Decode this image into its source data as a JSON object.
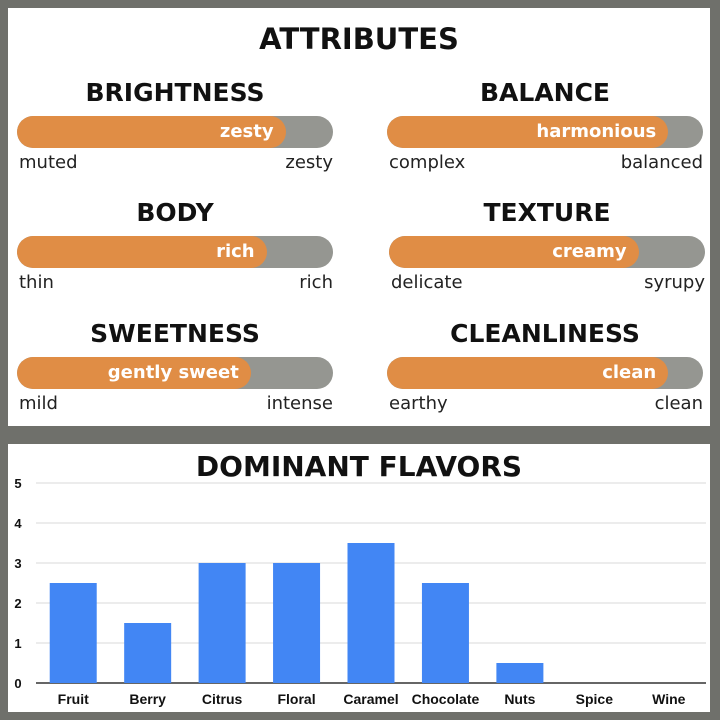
{
  "attributes": {
    "title": "ATTRIBUTES",
    "items": [
      {
        "name": "BRIGHTNESS",
        "value_label": "zesty",
        "low": "muted",
        "high": "zesty",
        "level": 0.85
      },
      {
        "name": "BALANCE",
        "value_label": "harmonious",
        "low": "complex",
        "high": "balanced",
        "level": 0.89
      },
      {
        "name": "BODY",
        "value_label": "rich",
        "low": "thin",
        "high": "rich",
        "level": 0.79
      },
      {
        "name": "TEXTURE",
        "value_label": "creamy",
        "low": "delicate",
        "high": "syrupy",
        "level": 0.79
      },
      {
        "name": "SWEETNESS",
        "value_label": "gently sweet",
        "low": "mild",
        "high": "intense",
        "level": 0.74
      },
      {
        "name": "CLEANLINESS",
        "value_label": "clean",
        "low": "earthy",
        "high": "clean",
        "level": 0.89
      }
    ],
    "colors": {
      "fill": "#e08d45",
      "track": "#959691"
    }
  },
  "chart_data": {
    "type": "bar",
    "title": "DOMINANT FLAVORS",
    "categories": [
      "Fruit",
      "Berry",
      "Citrus",
      "Floral",
      "Caramel",
      "Chocolate",
      "Nuts",
      "Spice",
      "Wine"
    ],
    "values": [
      2.5,
      1.5,
      3,
      3,
      3.5,
      2.5,
      0.5,
      0,
      0
    ],
    "yticks": [
      "0",
      "1",
      "2",
      "3",
      "4",
      "5"
    ],
    "ylim": [
      0,
      5
    ],
    "xlabel": "",
    "ylabel": "",
    "grid": true,
    "color": "#4286f4"
  }
}
